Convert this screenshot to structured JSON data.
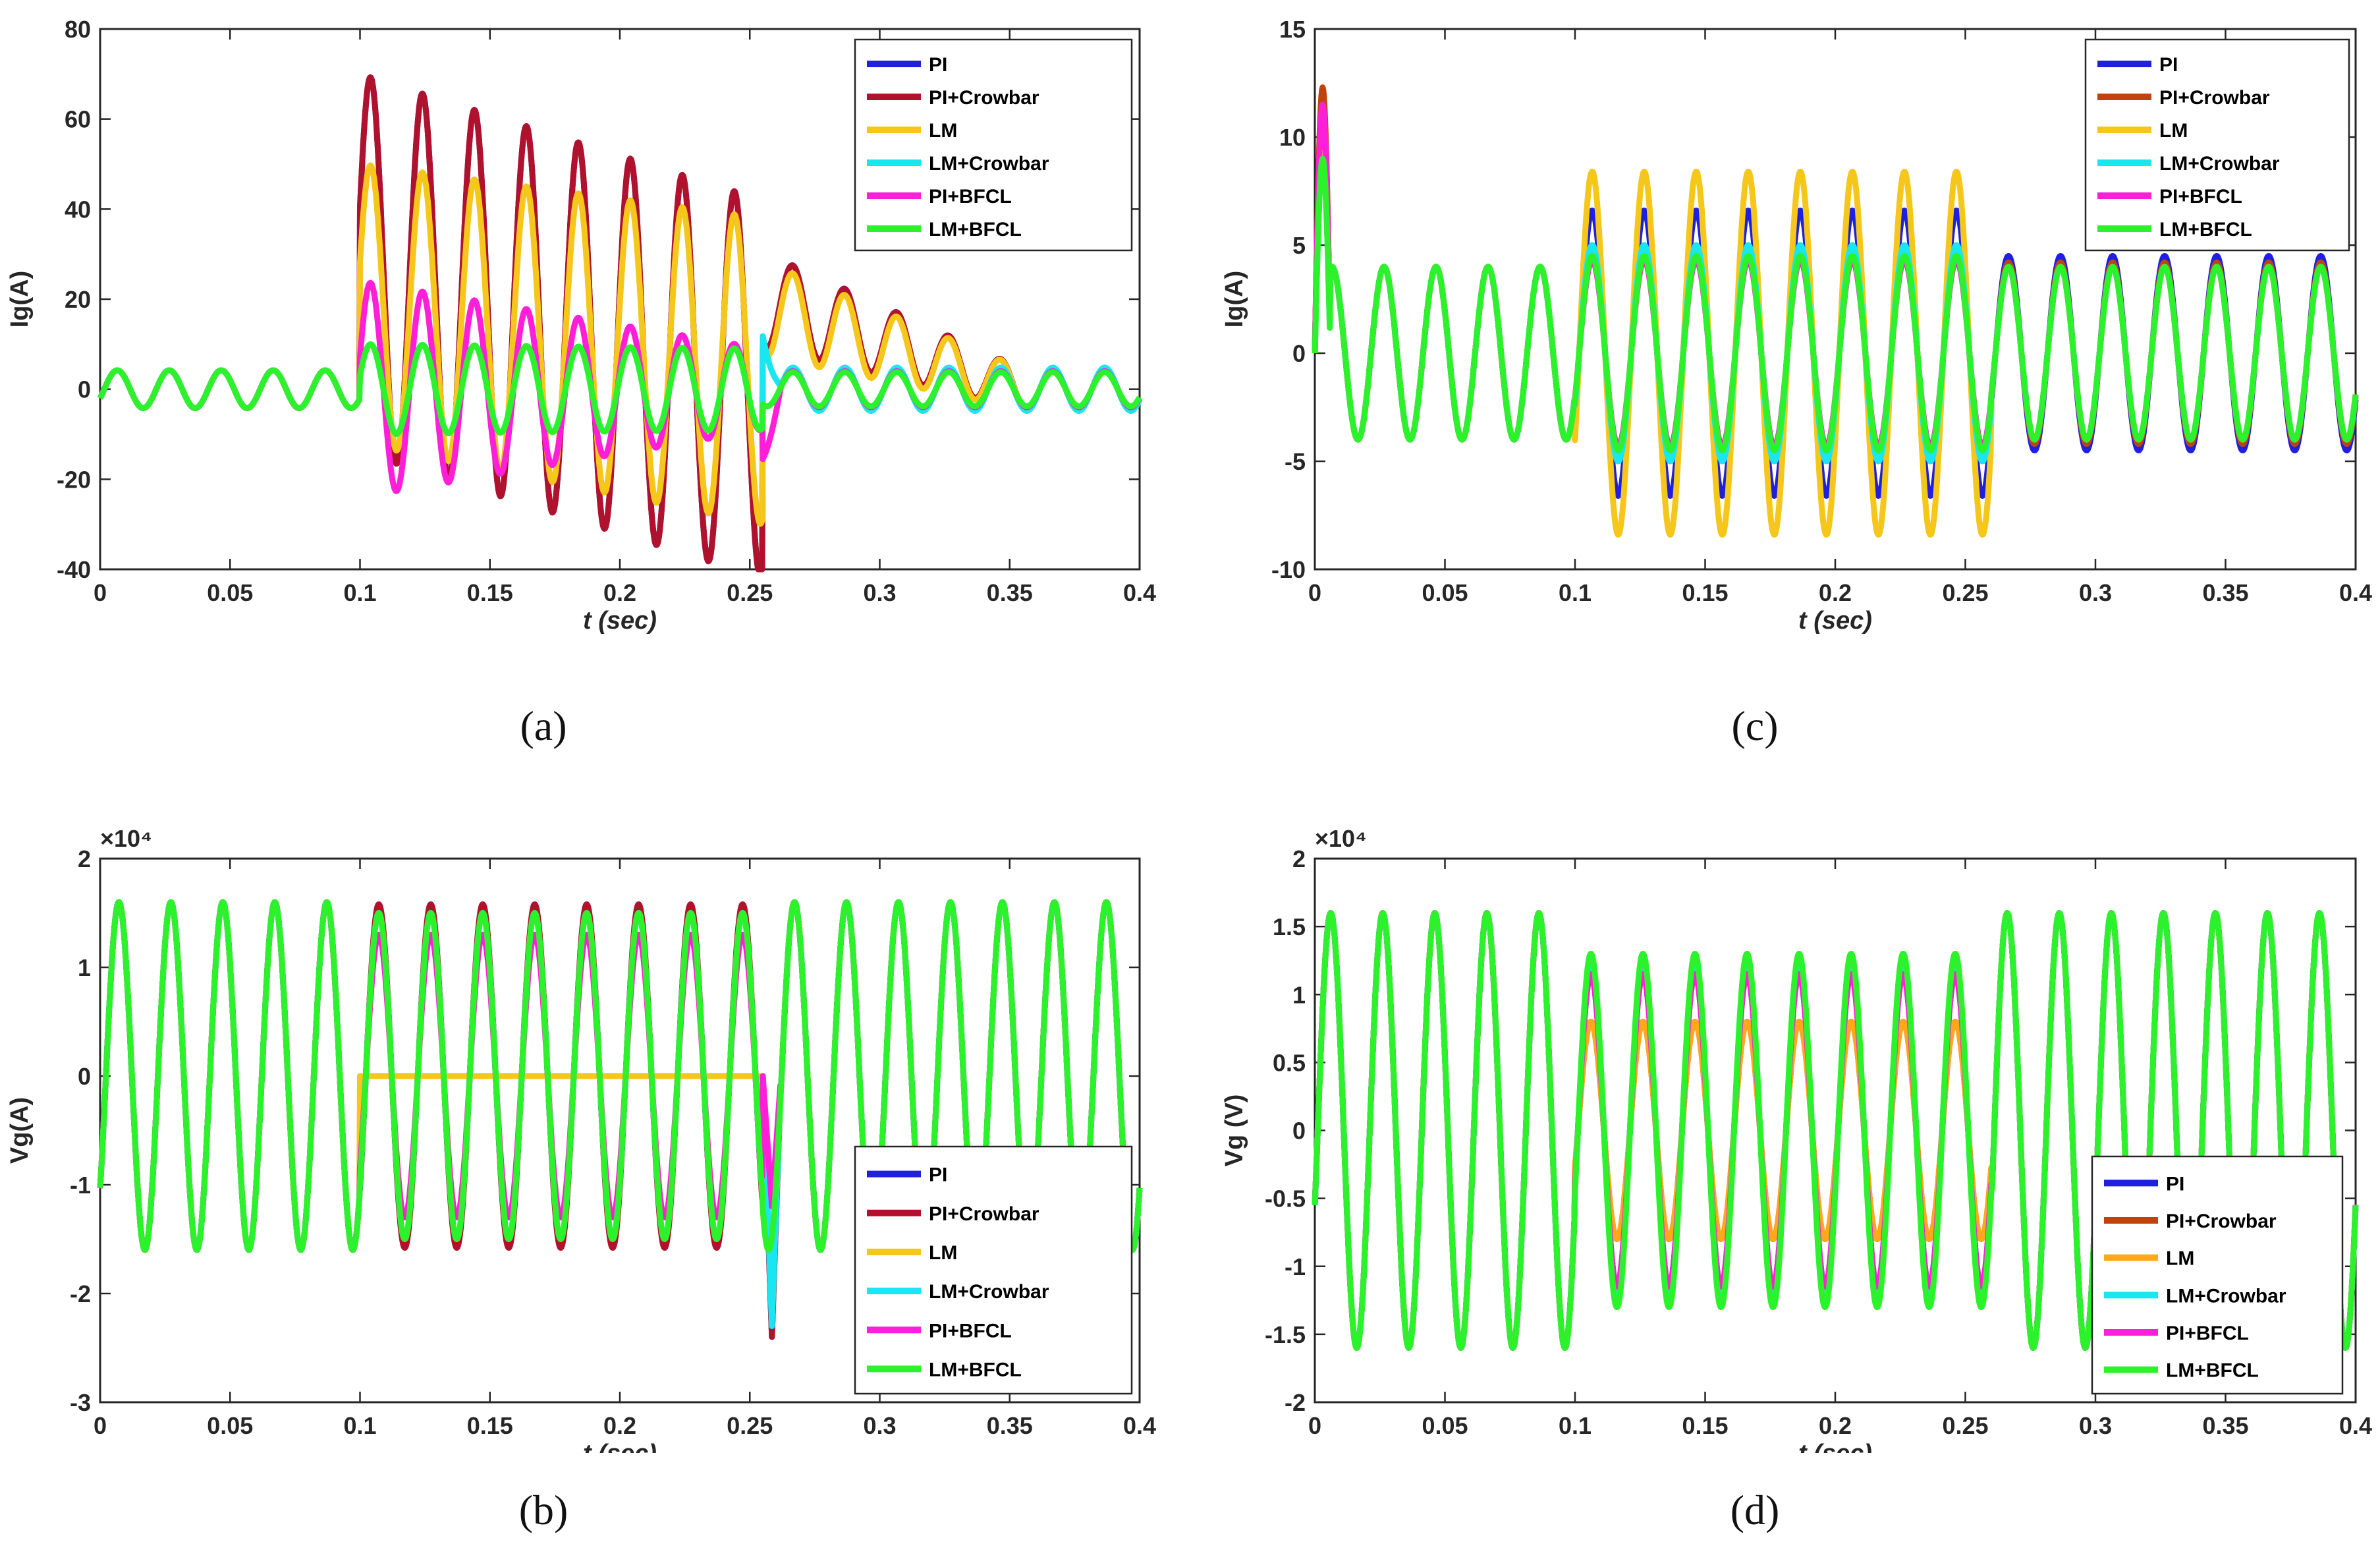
{
  "panel_captions": [
    "(a)",
    "(b)",
    "(c)",
    "(d)"
  ],
  "chart_data": [
    {
      "id": "a",
      "type": "line",
      "title": "",
      "xlabel": "t (sec)",
      "ylabel": "Ig(A)",
      "xlim": [
        0,
        0.4
      ],
      "ylim": [
        -40,
        80
      ],
      "xticks": [
        "0",
        "0.05",
        "0.1",
        "0.15",
        "0.2",
        "0.25",
        "0.3",
        "0.35",
        "0.4"
      ],
      "yticks": [
        "-40",
        "-20",
        "0",
        "20",
        "40",
        "60",
        "80"
      ],
      "exponent": "",
      "legend_position": "top-right",
      "series": [
        {
          "name": "PI",
          "color": "#1f1fe0",
          "model": {
            "pre": 4.2,
            "fault": 10,
            "amp": [
              70,
              42
            ],
            "offset": [
              28,
              0
            ],
            "post": 4.5,
            "dc_post": [
              20,
              0
            ],
            "f": 50
          }
        },
        {
          "name": "PI+Crowbar",
          "color": "#b0122e",
          "model": {
            "pre": 4.2,
            "fault": 10,
            "amp": [
              70,
              42
            ],
            "offset": [
              28,
              0
            ],
            "post": 4.5,
            "dc_post": [
              20,
              0
            ],
            "f": 50
          }
        },
        {
          "name": "LM",
          "color": "#f5c71a",
          "model": {
            "pre": 4.2,
            "fault": 10,
            "amp": [
              50,
              38
            ],
            "offset": [
              19,
              4
            ],
            "post": 4.5,
            "dc_post": [
              18,
              0
            ],
            "f": 50
          }
        },
        {
          "name": "LM+Crowbar",
          "color": "#18e6f0",
          "model": {
            "pre": 4.2,
            "fault": 10,
            "amp": [
              10,
              9
            ],
            "offset": [
              0,
              0
            ],
            "post": 4.8,
            "spike": 16,
            "f": 50
          }
        },
        {
          "name": "PI+BFCL",
          "color": "#ff1fd8",
          "model": {
            "pre": 4.2,
            "fault": 10,
            "amp": [
              24,
              9
            ],
            "offset": [
              0,
              0
            ],
            "post": 4.0,
            "spike": -12,
            "f": 50
          }
        },
        {
          "name": "LM+BFCL",
          "color": "#2cf22c",
          "model": {
            "pre": 4.2,
            "fault": 10,
            "amp": [
              10,
              9
            ],
            "offset": [
              0,
              0
            ],
            "post": 3.8,
            "f": 50
          }
        }
      ]
    },
    {
      "id": "b",
      "type": "line",
      "title": "",
      "xlabel": "t (sec)",
      "ylabel": "Vg(A)",
      "xlim": [
        0,
        0.4
      ],
      "ylim": [
        -3,
        2
      ],
      "xticks": [
        "0",
        "0.05",
        "0.1",
        "0.15",
        "0.2",
        "0.25",
        "0.3",
        "0.35",
        "0.4"
      ],
      "yticks": [
        "-3",
        "-2",
        "-1",
        "0",
        "1",
        "2"
      ],
      "exponent": "×10⁴",
      "legend_position": "bottom-right",
      "series": [
        {
          "name": "PI",
          "color": "#1f1fe0",
          "model": {
            "pre": 1.6,
            "fault": 1.55,
            "f": 50,
            "spike": -2.4
          }
        },
        {
          "name": "PI+Crowbar",
          "color": "#b0122e",
          "model": {
            "pre": 1.6,
            "fault": 1.58,
            "f": 50,
            "spike": -2.4
          }
        },
        {
          "name": "LM",
          "color": "#f5c71a",
          "model": {
            "pre": 1.6,
            "fault": 0.0,
            "f": 50
          }
        },
        {
          "name": "LM+Crowbar",
          "color": "#18e6f0",
          "model": {
            "pre": 1.6,
            "fault": 1.5,
            "f": 50,
            "spike": -2.3
          }
        },
        {
          "name": "PI+BFCL",
          "color": "#ff1fd8",
          "model": {
            "pre": 1.6,
            "fault": 1.3,
            "f": 50,
            "spike": -1.2
          }
        },
        {
          "name": "LM+BFCL",
          "color": "#2cf22c",
          "model": {
            "pre": 1.6,
            "fault": 1.5,
            "f": 50
          }
        }
      ]
    },
    {
      "id": "c",
      "type": "line",
      "title": "",
      "xlabel": "t (sec)",
      "ylabel": "Ig(A)",
      "xlim": [
        0,
        0.4
      ],
      "ylim": [
        -10,
        15
      ],
      "xticks": [
        "0",
        "0.05",
        "0.1",
        "0.15",
        "0.2",
        "0.25",
        "0.3",
        "0.35",
        "0.4"
      ],
      "yticks": [
        "-10",
        "-5",
        "0",
        "5",
        "10",
        "15"
      ],
      "exponent": "",
      "legend_position": "top-right",
      "series": [
        {
          "name": "PI",
          "color": "#1f1fe0",
          "model": {
            "pre": 4.0,
            "fault": 6.6,
            "f": 50,
            "start": 12,
            "post": 4.5
          }
        },
        {
          "name": "PI+Crowbar",
          "color": "#c0430e",
          "model": {
            "pre": 4.0,
            "fault": 5.0,
            "f": 50,
            "start": 12.3,
            "post": 4.2
          }
        },
        {
          "name": "LM",
          "color": "#f5c71a",
          "model": {
            "pre": 4.0,
            "fault": 8.4,
            "f": 50,
            "start": 11,
            "post": 4.0
          }
        },
        {
          "name": "LM+Crowbar",
          "color": "#18e6f0",
          "model": {
            "pre": 4.0,
            "fault": 5.0,
            "f": 50,
            "start": 9,
            "post": 4.0
          }
        },
        {
          "name": "PI+BFCL",
          "color": "#ff1fd8",
          "model": {
            "pre": 4.0,
            "fault": 4.3,
            "f": 50,
            "start": 11.5,
            "post": 4.0
          }
        },
        {
          "name": "LM+BFCL",
          "color": "#2cf22c",
          "model": {
            "pre": 4.0,
            "fault": 4.5,
            "f": 50,
            "start": 9,
            "post": 4.0
          }
        }
      ]
    },
    {
      "id": "d",
      "type": "line",
      "title": "",
      "xlabel": "t (sec)",
      "ylabel": "Vg (V)",
      "xlim": [
        0,
        0.4
      ],
      "ylim": [
        -2,
        2
      ],
      "xticks": [
        "0",
        "0.05",
        "0.1",
        "0.15",
        "0.2",
        "0.25",
        "0.3",
        "0.35",
        "0.4"
      ],
      "yticks": [
        "-2",
        "-1.5",
        "-1",
        "-0.5",
        "0",
        "0.5",
        "1",
        "1.5",
        "2"
      ],
      "exponent": "×10⁴",
      "legend_position": "bottom-right",
      "series": [
        {
          "name": "PI",
          "color": "#1f1fe0",
          "model": {
            "pre": 1.6,
            "fault": 1.15,
            "f": 50
          }
        },
        {
          "name": "PI+Crowbar",
          "color": "#c0430e",
          "model": {
            "pre": 1.6,
            "fault": 0.8,
            "f": 50
          }
        },
        {
          "name": "LM",
          "color": "#ffa81a",
          "model": {
            "pre": 1.6,
            "fault": 0.8,
            "f": 50
          }
        },
        {
          "name": "LM+Crowbar",
          "color": "#18e6f0",
          "model": {
            "pre": 1.6,
            "fault": 1.25,
            "f": 50
          }
        },
        {
          "name": "PI+BFCL",
          "color": "#ff1fd8",
          "model": {
            "pre": 1.6,
            "fault": 1.15,
            "f": 50
          }
        },
        {
          "name": "LM+BFCL",
          "color": "#2cf22c",
          "model": {
            "pre": 1.6,
            "fault": 1.3,
            "f": 50
          }
        }
      ]
    }
  ]
}
